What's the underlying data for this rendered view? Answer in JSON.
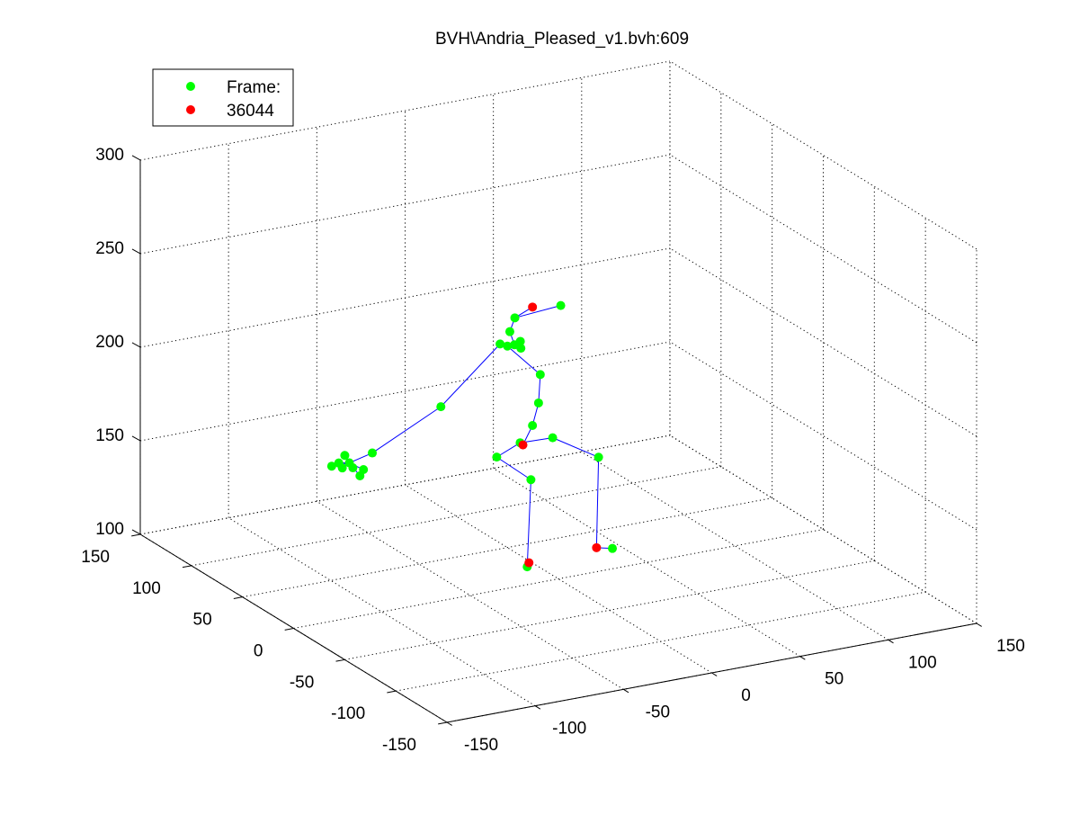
{
  "chart_data": {
    "type": "scatter",
    "title": "BVH\\Andria_Pleased_v1.bvh:609",
    "legend": {
      "placement": "top-left",
      "entries": [
        {
          "label": "Frame:",
          "color": "#00ff00"
        },
        {
          "label": "36044",
          "color": "#ff0000"
        }
      ]
    },
    "grid": true,
    "axes": {
      "x": {
        "range": [
          -150,
          150
        ],
        "ticks": [
          "-150",
          "-100",
          "-50",
          "0",
          "50",
          "100",
          "150"
        ]
      },
      "y": {
        "range": [
          -150,
          150
        ],
        "ticks": [
          "-150",
          "-100",
          "-50",
          "0",
          "50",
          "100",
          "150"
        ]
      },
      "z": {
        "range": [
          100,
          300
        ],
        "ticks": [
          "100",
          "150",
          "200",
          "250",
          "300"
        ]
      }
    },
    "colors": {
      "joint": "#00ff00",
      "end_site": "#ff0000",
      "bone": "#0000ff"
    },
    "joints": [
      {
        "id": "head_end",
        "x": 5,
        "y": 34,
        "z": 233,
        "color": "end_site"
      },
      {
        "id": "head",
        "x": -5,
        "y": 34,
        "z": 229
      },
      {
        "id": "face",
        "x": 21,
        "y": 34,
        "z": 231
      },
      {
        "id": "neck",
        "x": -9,
        "y": 32,
        "z": 223
      },
      {
        "id": "neck1",
        "x": -11,
        "y": 24,
        "z": 219
      },
      {
        "id": "chest2",
        "x": -15,
        "y": 24,
        "z": 219
      },
      {
        "id": "lshoulder",
        "x": -18,
        "y": 26,
        "z": 220
      },
      {
        "id": "rshoulder",
        "x": -12,
        "y": 16,
        "z": 220
      },
      {
        "id": "clavicle",
        "x": -10,
        "y": 20,
        "z": 222
      },
      {
        "id": "spine2",
        "x": -1,
        "y": 16,
        "z": 204
      },
      {
        "id": "spine1",
        "x": -2,
        "y": 16,
        "z": 189
      },
      {
        "id": "spine",
        "x": -6,
        "y": 15,
        "z": 178
      },
      {
        "id": "hips_end",
        "x": -12,
        "y": 14,
        "z": 169,
        "color": "end_site"
      },
      {
        "id": "hips",
        "x": -13,
        "y": 15,
        "z": 170
      },
      {
        "id": "lupleg",
        "x": -28,
        "y": 12,
        "z": 166
      },
      {
        "id": "rupleg",
        "x": 6,
        "y": 16,
        "z": 169
      },
      {
        "id": "lleg",
        "x": -4,
        "y": 20,
        "z": 147
      },
      {
        "id": "rleg",
        "x": 32,
        "y": 16,
        "z": 154
      },
      {
        "id": "lfoot",
        "x": -9,
        "y": 15,
        "z": 103
      },
      {
        "id": "lfoot_end",
        "x": -8,
        "y": 15,
        "z": 105,
        "color": "end_site"
      },
      {
        "id": "rfoot",
        "x": 32,
        "y": 18,
        "z": 105,
        "color": "end_site"
      },
      {
        "id": "rtoe",
        "x": 41,
        "y": 18,
        "z": 103
      },
      {
        "id": "rarm",
        "x": -55,
        "y": 20,
        "z": 195
      },
      {
        "id": "rforearm",
        "x": -95,
        "y": 18,
        "z": 178
      },
      {
        "id": "rhand1",
        "x": -108,
        "y": 18,
        "z": 175
      },
      {
        "id": "rhand2",
        "x": -112,
        "y": 18,
        "z": 173
      },
      {
        "id": "rhand3",
        "x": -106,
        "y": 18,
        "z": 172
      },
      {
        "id": "rhand4",
        "x": -102,
        "y": 18,
        "z": 167
      },
      {
        "id": "rhand5",
        "x": -114,
        "y": 18,
        "z": 176
      },
      {
        "id": "rhand6",
        "x": -110,
        "y": 19,
        "z": 179
      },
      {
        "id": "rhand7",
        "x": -118,
        "y": 18,
        "z": 175
      },
      {
        "id": "rhand8",
        "x": -100,
        "y": 18,
        "z": 170
      }
    ],
    "bones": [
      [
        "head_end",
        "head"
      ],
      [
        "head",
        "face"
      ],
      [
        "head",
        "neck"
      ],
      [
        "neck",
        "neck1"
      ],
      [
        "neck1",
        "chest2"
      ],
      [
        "chest2",
        "lshoulder"
      ],
      [
        "chest2",
        "rshoulder"
      ],
      [
        "neck1",
        "clavicle"
      ],
      [
        "chest2",
        "spine2"
      ],
      [
        "spine2",
        "spine1"
      ],
      [
        "spine1",
        "spine"
      ],
      [
        "spine",
        "hips_end"
      ],
      [
        "hips_end",
        "hips"
      ],
      [
        "hips",
        "lupleg"
      ],
      [
        "hips",
        "rupleg"
      ],
      [
        "lupleg",
        "lleg"
      ],
      [
        "lleg",
        "lfoot"
      ],
      [
        "lfoot",
        "lfoot_end"
      ],
      [
        "rupleg",
        "rleg"
      ],
      [
        "rleg",
        "rfoot"
      ],
      [
        "rfoot",
        "rtoe"
      ],
      [
        "lshoulder",
        "rarm"
      ],
      [
        "rarm",
        "rforearm"
      ],
      [
        "rforearm",
        "rhand1"
      ],
      [
        "rhand1",
        "rhand2"
      ],
      [
        "rhand1",
        "rhand3"
      ],
      [
        "rhand1",
        "rhand4"
      ],
      [
        "rhand1",
        "rhand5"
      ],
      [
        "rhand1",
        "rhand6"
      ],
      [
        "rhand1",
        "rhand7"
      ],
      [
        "rhand1",
        "rhand8"
      ]
    ]
  }
}
